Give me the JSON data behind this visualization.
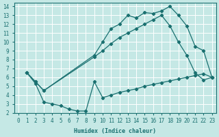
{
  "xlabel": "Humidex (Indice chaleur)",
  "bg_color": "#c5e8e5",
  "grid_color": "#ffffff",
  "line_color": "#1a7070",
  "xlim": [
    -0.5,
    23.5
  ],
  "ylim": [
    2,
    14.4
  ],
  "xticks": [
    0,
    1,
    2,
    3,
    4,
    5,
    6,
    7,
    8,
    9,
    10,
    11,
    12,
    13,
    14,
    15,
    16,
    17,
    18,
    19,
    20,
    21,
    22,
    23
  ],
  "yticks": [
    2,
    3,
    4,
    5,
    6,
    7,
    8,
    9,
    10,
    11,
    12,
    13,
    14
  ],
  "line1_x": [
    1,
    2,
    3,
    9,
    10,
    11,
    12,
    13,
    14,
    15,
    16,
    17,
    18,
    19,
    20,
    21,
    22,
    23
  ],
  "line1_y": [
    6.5,
    5.5,
    4.5,
    8.5,
    10.0,
    11.5,
    12.0,
    13.0,
    12.7,
    13.3,
    13.2,
    13.5,
    14.0,
    13.0,
    11.8,
    9.5,
    9.0,
    6.0
  ],
  "line2_x": [
    1,
    2,
    3,
    9,
    10,
    11,
    12,
    13,
    14,
    15,
    16,
    17,
    18,
    19,
    20,
    21,
    22,
    23
  ],
  "line2_y": [
    6.5,
    5.5,
    4.5,
    8.3,
    9.0,
    9.8,
    10.5,
    11.0,
    11.5,
    12.0,
    12.5,
    13.0,
    11.8,
    10.0,
    8.5,
    6.5,
    5.7,
    6.0
  ],
  "line3_x": [
    1,
    2,
    3,
    4,
    5,
    6,
    7,
    8,
    9,
    10,
    11,
    12,
    13,
    14,
    15,
    16,
    17,
    18,
    19,
    20,
    21,
    22,
    23
  ],
  "line3_y": [
    6.5,
    5.3,
    3.2,
    3.0,
    2.8,
    2.4,
    2.2,
    2.2,
    5.5,
    3.7,
    4.0,
    4.3,
    4.5,
    4.7,
    5.0,
    5.2,
    5.4,
    5.6,
    5.8,
    6.0,
    6.2,
    6.4,
    6.0
  ]
}
